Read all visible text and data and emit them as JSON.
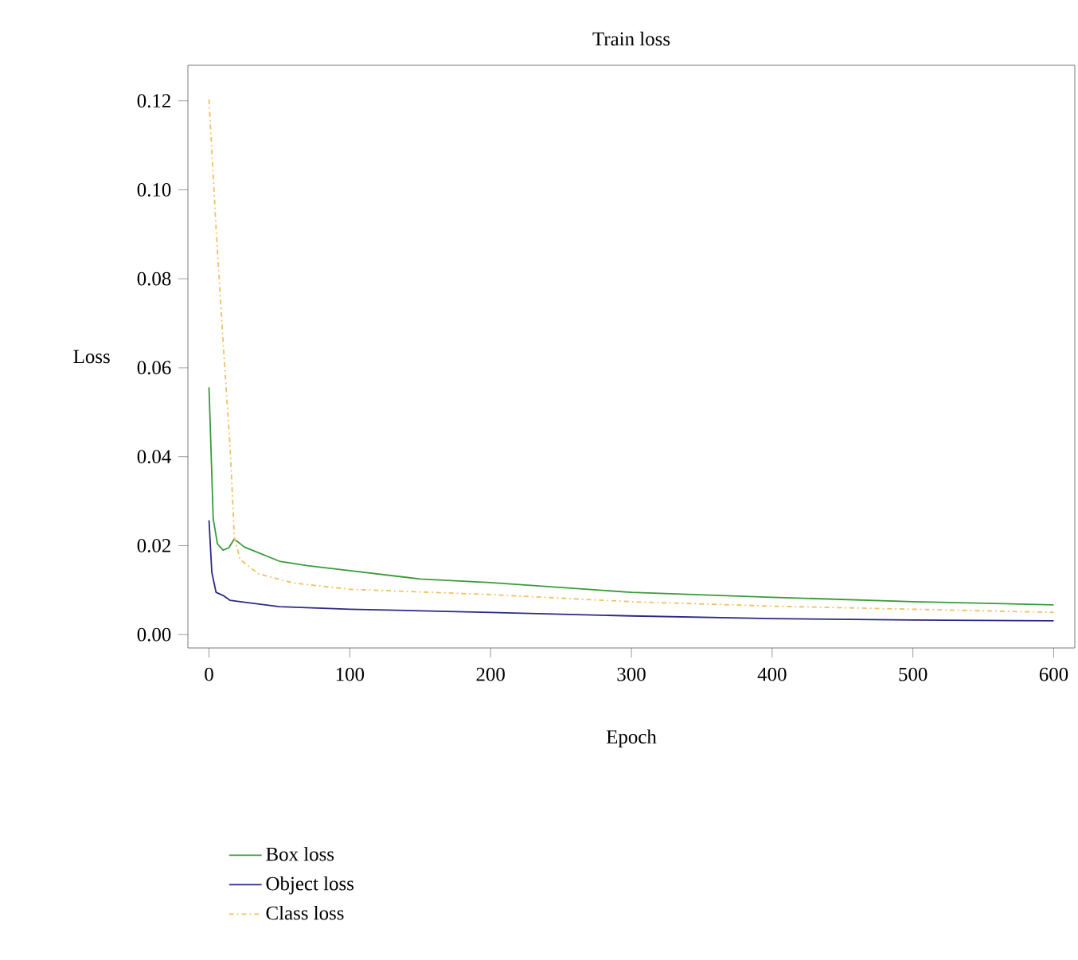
{
  "chart_data": {
    "type": "line",
    "title": "Train loss",
    "xlabel": "Epoch",
    "ylabel": "Loss",
    "xlim": [
      -15,
      615
    ],
    "ylim": [
      -0.003,
      0.128
    ],
    "xticks": [
      0,
      100,
      200,
      300,
      400,
      500,
      600
    ],
    "yticks": [
      {
        "value": 0,
        "label": "0.00"
      },
      {
        "value": 0.02,
        "label": "0.02"
      },
      {
        "value": 0.04,
        "label": "0.04"
      },
      {
        "value": 0.06,
        "label": "0.06"
      },
      {
        "value": 0.08,
        "label": "0.08"
      },
      {
        "value": 0.1,
        "label": "0.10"
      },
      {
        "value": 0.12,
        "label": "0.12"
      }
    ],
    "grid": false,
    "legend": "bottom",
    "marker": "none",
    "series": [
      {
        "name": "Box loss",
        "color": "#3a9a3a",
        "line_style": "solid",
        "x": [
          0,
          3,
          6,
          10,
          14,
          18,
          25,
          50,
          70,
          100,
          150,
          200,
          300,
          400,
          500,
          600
        ],
        "values": [
          0.0556,
          0.026,
          0.0204,
          0.019,
          0.0195,
          0.0215,
          0.0197,
          0.0165,
          0.0155,
          0.0144,
          0.0125,
          0.0117,
          0.0095,
          0.0084,
          0.0074,
          0.0067
        ]
      },
      {
        "name": "Object loss",
        "color": "#2b2a85",
        "line_style": "solid",
        "x": [
          0,
          2,
          5,
          10,
          15,
          20,
          50,
          100,
          200,
          300,
          400,
          500,
          600
        ],
        "values": [
          0.0257,
          0.014,
          0.0095,
          0.0088,
          0.0077,
          0.0075,
          0.0063,
          0.0057,
          0.005,
          0.0042,
          0.0036,
          0.0033,
          0.0031
        ]
      },
      {
        "name": "Class loss",
        "color": "#f0c060",
        "line_style": "dashdot",
        "x": [
          0,
          5,
          10,
          15,
          18,
          22,
          35,
          60,
          100,
          200,
          300,
          400,
          500,
          600
        ],
        "values": [
          0.1203,
          0.0915,
          0.0658,
          0.042,
          0.022,
          0.0169,
          0.0137,
          0.0116,
          0.0102,
          0.009,
          0.0074,
          0.0064,
          0.0057,
          0.005
        ]
      }
    ]
  }
}
